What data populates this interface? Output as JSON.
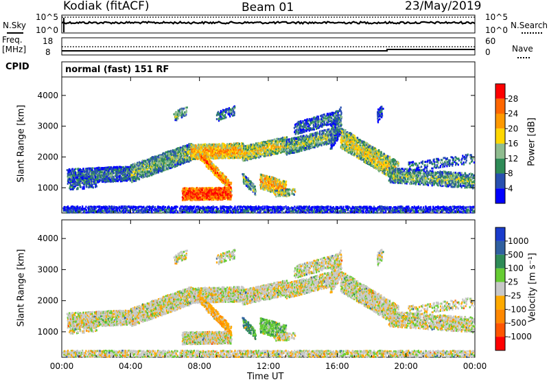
{
  "header": {
    "radar": "Kodiak (fitACF)",
    "beam": "Beam 01",
    "date": "23/May/2019"
  },
  "top_panels": {
    "nsky_label": "N.Sky",
    "nsearch_label": "N.Search",
    "noise_ticks": [
      "10^5",
      "10^0"
    ],
    "freq_label_line1": "Freq.",
    "freq_label_line2": "[MHz]",
    "freq_ticks": [
      "18",
      "8"
    ],
    "nave_label": "Nave",
    "nave_ticks": [
      "60",
      "0"
    ],
    "cpid_label": "CPID",
    "cpid_value": "normal (fast) 151 RF"
  },
  "chart_data": [
    {
      "type": "heatmap",
      "name": "power",
      "ylabel": "Slant Range [km]",
      "yticks": [
        1000,
        2000,
        3000,
        4000
      ],
      "ylim": [
        180,
        4600
      ],
      "xlabel": "",
      "xlim": [
        0,
        24
      ],
      "colorbar_label": "Power [dB]",
      "colorbar_ticks": [
        "4",
        "8",
        "12",
        "16",
        "20",
        "24",
        "28"
      ],
      "colorbar_colors": [
        "#0000ff",
        "#2850b0",
        "#2e8b57",
        "#8fbc8f",
        "#ffd700",
        "#ff9900",
        "#ff6600",
        "#ff0000"
      ]
    },
    {
      "type": "heatmap",
      "name": "velocity",
      "ylabel": "Slant Range [km]",
      "yticks": [
        1000,
        2000,
        3000,
        4000
      ],
      "ylim": [
        180,
        4600
      ],
      "xlabel": "Time UT",
      "xticks": [
        "00:00",
        "04:00",
        "08:00",
        "12:00",
        "16:00",
        "20:00",
        "00:00"
      ],
      "xlim": [
        0,
        24
      ],
      "colorbar_label": "Velocity [m s⁻¹]",
      "colorbar_ticks": [
        "1000",
        "500",
        "100",
        "25",
        "-25",
        "-100",
        "-500",
        "-1000"
      ],
      "colorbar_colors": [
        "#1a3ccc",
        "#3060a0",
        "#2e8b57",
        "#66cc33",
        "#c8c8c8",
        "#ffaa00",
        "#ff8800",
        "#ff5500",
        "#ff0000"
      ]
    }
  ],
  "colors": {
    "nsky_line": "#000000",
    "background": "#ffffff"
  }
}
